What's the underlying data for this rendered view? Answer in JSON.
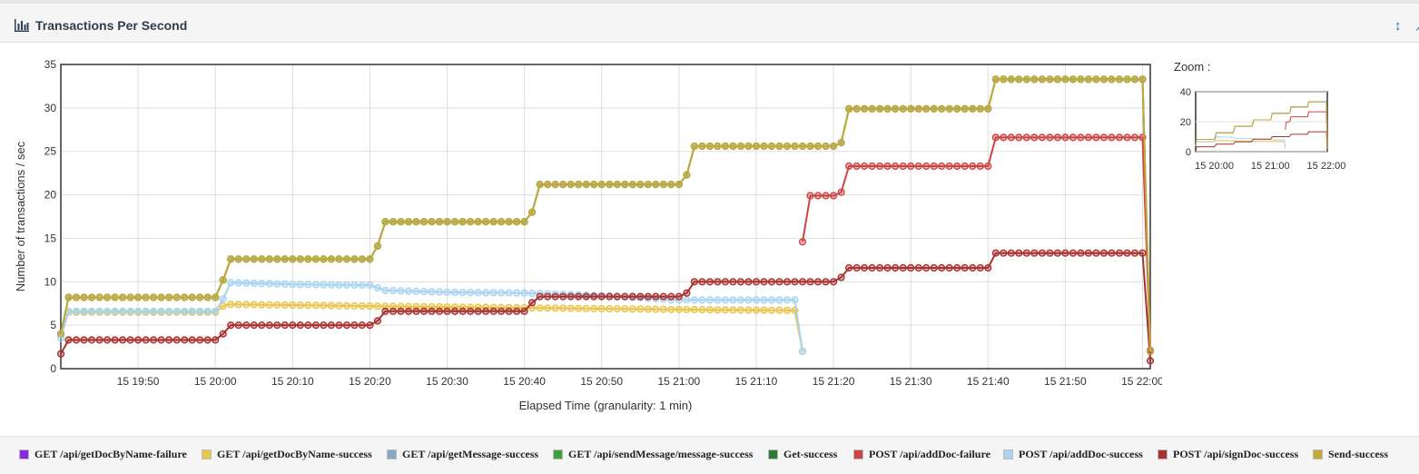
{
  "panel": {
    "title": "Transactions Per Second",
    "icons": {
      "chart": "bar-chart-icon",
      "resize": "resize-vertical-icon"
    }
  },
  "zoom": {
    "label": "Zoom :"
  },
  "chart_data": {
    "type": "line",
    "xlabel": "Elapsed Time (granularity: 1 min)",
    "ylabel": "Number of transactions / sec",
    "ylim": [
      0,
      35
    ],
    "yticks": [
      0,
      5,
      10,
      15,
      20,
      25,
      30,
      35
    ],
    "x_unit": "minute",
    "x_range": [
      "15 19:40",
      "15 22:01"
    ],
    "xticks": [
      "15 19:50",
      "15 20:00",
      "15 20:10",
      "15 20:20",
      "15 20:30",
      "15 20:40",
      "15 20:50",
      "15 21:00",
      "15 21:10",
      "15 21:20",
      "15 21:30",
      "15 21:40",
      "15 21:50",
      "15 22:00"
    ],
    "grid": true,
    "legend_position": "bottom",
    "series": [
      {
        "name": "GET /api/getDocByName-failure",
        "color": "#8a2be2",
        "points": []
      },
      {
        "name": "GET /api/getDocByName-success",
        "color": "#e8c54d",
        "points": [
          [
            "15 19:40",
            4.0
          ],
          [
            "15 19:41",
            6.5
          ],
          [
            "15 19:43",
            6.5
          ],
          [
            "15 20:00",
            6.5
          ],
          [
            "15 20:01",
            7.2
          ],
          [
            "15 20:02",
            7.4
          ],
          [
            "15 20:20",
            7.2
          ],
          [
            "15 20:40",
            7.0
          ],
          [
            "15 20:50",
            6.9
          ],
          [
            "15 21:00",
            6.8
          ],
          [
            "15 21:15",
            6.7
          ],
          [
            "15 21:16",
            2.0
          ]
        ]
      },
      {
        "name": "GET /api/getMessage-success",
        "color": "#88a8c8",
        "points": []
      },
      {
        "name": "GET /api/sendMessage/message-success",
        "color": "#3ca03c",
        "points": []
      },
      {
        "name": "Get-success",
        "color": "#2e7d32",
        "points": [
          [
            "15 19:40",
            4.0
          ],
          [
            "15 19:41",
            8.2
          ],
          [
            "15 20:00",
            8.2
          ],
          [
            "15 20:01",
            10.2
          ],
          [
            "15 20:02",
            12.6
          ],
          [
            "15 20:20",
            12.6
          ],
          [
            "15 20:21",
            14.1
          ],
          [
            "15 20:22",
            16.9
          ],
          [
            "15 20:40",
            16.9
          ],
          [
            "15 20:41",
            18.0
          ],
          [
            "15 20:42",
            21.2
          ],
          [
            "15 21:00",
            21.2
          ],
          [
            "15 21:01",
            22.3
          ],
          [
            "15 21:02",
            25.6
          ],
          [
            "15 21:20",
            25.6
          ],
          [
            "15 21:21",
            26.0
          ],
          [
            "15 21:22",
            29.9
          ],
          [
            "15 21:40",
            29.9
          ],
          [
            "15 21:41",
            33.3
          ],
          [
            "15 22:00",
            33.3
          ],
          [
            "15 22:01",
            2.0
          ]
        ]
      },
      {
        "name": "POST /api/addDoc-failure",
        "color": "#cc4444",
        "points": [
          [
            "15 21:16",
            14.6
          ],
          [
            "15 21:17",
            19.9
          ],
          [
            "15 21:20",
            19.9
          ],
          [
            "15 21:21",
            20.3
          ],
          [
            "15 21:22",
            23.3
          ],
          [
            "15 21:40",
            23.3
          ],
          [
            "15 21:41",
            26.6
          ],
          [
            "15 22:00",
            26.6
          ],
          [
            "15 22:01",
            2.1
          ]
        ]
      },
      {
        "name": "POST /api/addDoc-success",
        "color": "#a8d4f0",
        "points": [
          [
            "15 19:40",
            3.5
          ],
          [
            "15 19:41",
            6.6
          ],
          [
            "15 20:00",
            6.6
          ],
          [
            "15 20:01",
            8.0
          ],
          [
            "15 20:02",
            9.9
          ],
          [
            "15 20:10",
            9.7
          ],
          [
            "15 20:20",
            9.6
          ],
          [
            "15 20:22",
            9.0
          ],
          [
            "15 20:30",
            8.8
          ],
          [
            "15 20:40",
            8.7
          ],
          [
            "15 20:50",
            8.4
          ],
          [
            "15 21:00",
            7.9
          ],
          [
            "15 21:15",
            7.9
          ],
          [
            "15 21:16",
            2.0
          ]
        ]
      },
      {
        "name": "POST /api/signDoc-success",
        "color": "#a83232",
        "points": [
          [
            "15 19:40",
            1.7
          ],
          [
            "15 19:41",
            3.3
          ],
          [
            "15 20:00",
            3.3
          ],
          [
            "15 20:01",
            4.0
          ],
          [
            "15 20:02",
            5.0
          ],
          [
            "15 20:20",
            5.0
          ],
          [
            "15 20:21",
            5.5
          ],
          [
            "15 20:22",
            6.6
          ],
          [
            "15 20:40",
            6.6
          ],
          [
            "15 20:41",
            7.6
          ],
          [
            "15 20:42",
            8.3
          ],
          [
            "15 21:00",
            8.3
          ],
          [
            "15 21:01",
            8.7
          ],
          [
            "15 21:02",
            10.0
          ],
          [
            "15 21:20",
            10.0
          ],
          [
            "15 21:21",
            10.5
          ],
          [
            "15 21:22",
            11.6
          ],
          [
            "15 21:40",
            11.6
          ],
          [
            "15 21:41",
            13.3
          ],
          [
            "15 22:00",
            13.3
          ],
          [
            "15 22:01",
            0.9
          ]
        ]
      },
      {
        "name": "Send-success",
        "color": "#c4a83a",
        "points": [
          [
            "15 19:40",
            4.0
          ],
          [
            "15 19:41",
            8.2
          ],
          [
            "15 20:00",
            8.2
          ],
          [
            "15 20:01",
            10.2
          ],
          [
            "15 20:02",
            12.6
          ],
          [
            "15 20:20",
            12.6
          ],
          [
            "15 20:21",
            14.1
          ],
          [
            "15 20:22",
            16.9
          ],
          [
            "15 20:40",
            16.9
          ],
          [
            "15 20:41",
            18.0
          ],
          [
            "15 20:42",
            21.2
          ],
          [
            "15 21:00",
            21.2
          ],
          [
            "15 21:01",
            22.3
          ],
          [
            "15 21:02",
            25.6
          ],
          [
            "15 21:20",
            25.6
          ],
          [
            "15 21:21",
            26.0
          ],
          [
            "15 21:22",
            29.9
          ],
          [
            "15 21:40",
            29.9
          ],
          [
            "15 21:41",
            33.3
          ],
          [
            "15 22:00",
            33.3
          ],
          [
            "15 22:01",
            2.0
          ]
        ]
      }
    ]
  },
  "zoom_chart": {
    "yticks": [
      0,
      20,
      40
    ],
    "ylim": [
      0,
      40
    ],
    "xticks": [
      "15 20:00",
      "15 21:00",
      "15 22:00"
    ]
  }
}
